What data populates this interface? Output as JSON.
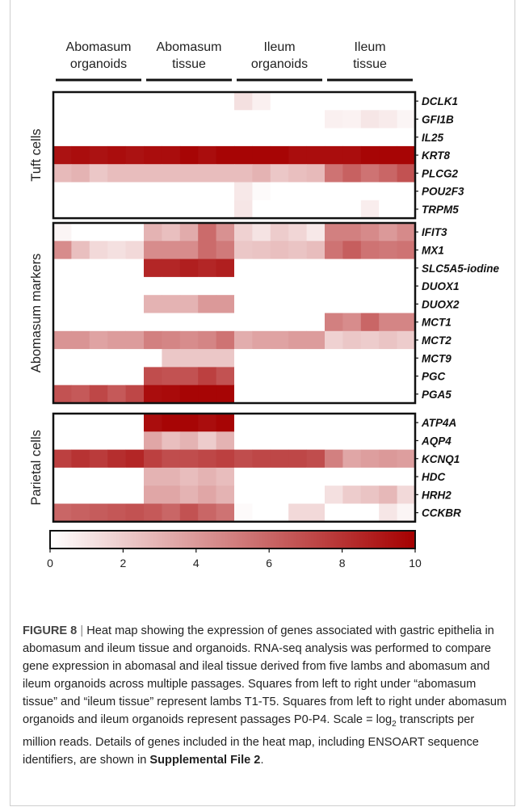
{
  "chart_data": {
    "type": "heatmap",
    "columns": [
      "Abomasum organoids",
      "Abomasum tissue",
      "Ileum organoids",
      "Ileum tissue"
    ],
    "column_groups": [
      {
        "line1": "Abomasum",
        "line2": "organoids"
      },
      {
        "line1": "Abomasum",
        "line2": "tissue"
      },
      {
        "line1": "Ileum",
        "line2": "organoids"
      },
      {
        "line1": "Ileum",
        "line2": "tissue"
      }
    ],
    "row_groups": [
      {
        "label": "Tuft cells",
        "genes": [
          {
            "name": "DCLK1",
            "values": [
              0,
              0,
              0,
              0,
              0,
              0,
              0,
              0,
              0,
              0,
              1.2,
              0.6,
              0,
              0,
              0,
              0,
              0,
              0,
              0,
              0
            ]
          },
          {
            "name": "GFI1B",
            "values": [
              0,
              0,
              0,
              0,
              0,
              0,
              0,
              0,
              0,
              0,
              0,
              0,
              0,
              0,
              0,
              0.6,
              0.5,
              1.0,
              0.8,
              0.4
            ]
          },
          {
            "name": "IL25",
            "values": [
              0,
              0,
              0,
              0,
              0,
              0,
              0,
              0,
              0,
              0,
              0,
              0,
              0,
              0,
              0,
              0,
              0,
              0,
              0,
              0
            ]
          },
          {
            "name": "KRT8",
            "values": [
              9.3,
              9.5,
              9.3,
              9.5,
              9.3,
              9.5,
              9.5,
              9.8,
              9.5,
              9.8,
              9.8,
              9.8,
              9.8,
              9.5,
              9.5,
              9.5,
              9.5,
              9.8,
              9.8,
              9.8
            ]
          },
          {
            "name": "PLCG2",
            "values": [
              2.7,
              3.0,
              2.2,
              2.6,
              2.6,
              2.6,
              2.6,
              2.6,
              2.6,
              2.6,
              2.6,
              3.0,
              2.2,
              2.5,
              2.7,
              5.5,
              6.2,
              5.5,
              6.0,
              6.8
            ]
          },
          {
            "name": "POU2F3",
            "values": [
              0,
              0,
              0,
              0,
              0,
              0,
              0,
              0,
              0,
              0,
              0.9,
              0.2,
              0,
              0,
              0,
              0,
              0,
              0,
              0,
              0
            ]
          },
          {
            "name": "TRPM5",
            "values": [
              0,
              0,
              0,
              0,
              0,
              0,
              0,
              0,
              0,
              0,
              1.0,
              0,
              0,
              0,
              0,
              0,
              0,
              0.7,
              0,
              0
            ]
          }
        ]
      },
      {
        "label": "Abomasum markers",
        "genes": [
          {
            "name": "IFIT3",
            "values": [
              0.4,
              0,
              0,
              0,
              0,
              3.0,
              2.5,
              3.3,
              5.8,
              4.3,
              1.8,
              1.1,
              2.0,
              1.6,
              0.9,
              5.0,
              5.0,
              4.6,
              4.0,
              4.6
            ]
          },
          {
            "name": "MX1",
            "values": [
              4.5,
              2.5,
              1.5,
              1.2,
              1.5,
              4.5,
              4.5,
              4.5,
              5.8,
              5.2,
              2.2,
              2.3,
              2.5,
              2.3,
              2.6,
              5.5,
              6.3,
              5.5,
              5.3,
              5.5
            ]
          },
          {
            "name": "SLC5A5-iodine",
            "values": [
              0,
              0,
              0,
              0,
              0,
              8.5,
              8.5,
              8.8,
              8.5,
              8.8,
              0,
              0,
              0,
              0,
              0,
              0,
              0,
              0,
              0,
              0
            ]
          },
          {
            "name": "DUOX1",
            "values": [
              0,
              0,
              0,
              0,
              0,
              0,
              0,
              0,
              0,
              0,
              0,
              0,
              0,
              0,
              0,
              0,
              0,
              0,
              0,
              0
            ]
          },
          {
            "name": "DUOX2",
            "values": [
              0,
              0,
              0,
              0,
              0,
              3.0,
              3.0,
              3.0,
              4.0,
              4.0,
              0,
              0,
              0,
              0,
              0,
              0,
              0,
              0,
              0,
              0
            ]
          },
          {
            "name": "MCT1",
            "values": [
              0,
              0,
              0,
              0,
              0,
              0,
              0,
              0,
              0,
              0,
              0,
              0,
              0,
              0,
              0,
              5.0,
              4.5,
              6.0,
              4.8,
              4.8
            ]
          },
          {
            "name": "MCT2",
            "values": [
              4.2,
              4.2,
              3.6,
              3.9,
              3.9,
              5.0,
              4.8,
              4.5,
              4.8,
              5.5,
              3.2,
              3.6,
              3.6,
              3.9,
              3.9,
              1.8,
              2.2,
              2.0,
              2.3,
              2.0
            ]
          },
          {
            "name": "MCT9",
            "values": [
              0,
              0,
              0,
              0,
              0,
              0,
              2.2,
              2.2,
              2.2,
              2.2,
              0,
              0,
              0,
              0,
              0,
              0,
              0,
              0,
              0,
              0
            ]
          },
          {
            "name": "PGC",
            "values": [
              0,
              0,
              0,
              0,
              0,
              7.0,
              6.8,
              6.8,
              7.5,
              6.8,
              0,
              0,
              0,
              0,
              0,
              0,
              0,
              0,
              0,
              0
            ]
          },
          {
            "name": "PGA5",
            "values": [
              6.8,
              6.5,
              7.2,
              6.5,
              7.2,
              9.5,
              9.6,
              9.8,
              9.8,
              9.8,
              0,
              0,
              0,
              0,
              0,
              0,
              0,
              0,
              0,
              0
            ]
          }
        ]
      },
      {
        "label": "Parietal cells",
        "genes": [
          {
            "name": "ATP4A",
            "values": [
              0,
              0,
              0,
              0,
              0,
              9.5,
              9.8,
              9.8,
              9.5,
              9.8,
              0,
              0,
              0,
              0,
              0,
              0,
              0,
              0,
              0,
              0
            ]
          },
          {
            "name": "AQP4",
            "values": [
              0,
              0,
              0,
              0,
              0,
              3.5,
              2.5,
              3.0,
              2.0,
              3.0,
              0,
              0,
              0,
              0,
              0,
              0,
              0,
              0,
              0,
              0
            ]
          },
          {
            "name": "KCNQ1",
            "values": [
              7.5,
              8.0,
              7.7,
              8.2,
              8.5,
              7.5,
              7.0,
              7.0,
              7.2,
              7.5,
              7.0,
              7.2,
              7.2,
              7.2,
              7.0,
              5.0,
              3.5,
              3.8,
              4.0,
              3.8
            ]
          },
          {
            "name": "HDC",
            "values": [
              0,
              0,
              0,
              0,
              0,
              3.0,
              3.0,
              2.6,
              3.0,
              2.6,
              0,
              0,
              0,
              0,
              0,
              0,
              0,
              0,
              0,
              0
            ]
          },
          {
            "name": "HRH2",
            "values": [
              0,
              0,
              0,
              0,
              0,
              3.5,
              3.5,
              3.0,
              3.5,
              3.0,
              0,
              0,
              0,
              0,
              0,
              1.2,
              2.0,
              2.3,
              2.8,
              1.5
            ]
          },
          {
            "name": "CCKBR",
            "values": [
              6.0,
              6.2,
              6.4,
              6.6,
              6.8,
              6.5,
              6.0,
              6.8,
              6.0,
              5.5,
              0.2,
              0,
              0,
              1.5,
              1.5,
              0,
              0,
              0,
              1.0,
              0.4
            ]
          }
        ]
      }
    ],
    "colorbar": {
      "min": 0,
      "max": 10,
      "ticks": [
        "0",
        "2",
        "4",
        "6",
        "8",
        "10"
      ],
      "color_low": "#ffffff",
      "color_high": "#a50000"
    }
  },
  "caption": {
    "label": "FIGURE 8",
    "sep": " | ",
    "text_1": "Heat map showing the expression of genes associated with gastric epithelia in abomasum and ileum tissue and organoids. RNA-seq analysis was performed to compare gene expression in abomasal and ileal tissue derived from five lambs and abomasum and ileum organoids across multiple passages. Squares from left to right under “abomasum tissue” and “ileum tissue” represent lambs T1-T5. Squares from left to right under abomasum organoids and ileum organoids represent passages P0-P4. Scale = log",
    "sub": "2",
    "text_2": " transcripts per million reads. Details of genes included in the heat map, including ENSOART sequence identifiers, are shown in ",
    "link": "Supplemental File 2",
    "end": "."
  }
}
